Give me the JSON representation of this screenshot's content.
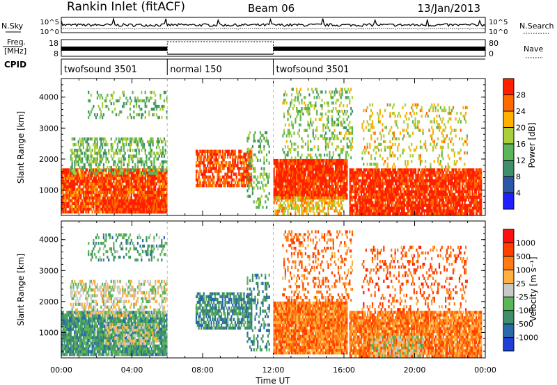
{
  "header": {
    "station": "Rankin Inlet (fitACF)",
    "beam": "Beam 06",
    "date": "13/Jan/2013"
  },
  "noise_panel": {
    "left_label": "N.Sky",
    "right_label": "N.Search",
    "left_ticks": [
      "10^5",
      "10^0"
    ],
    "right_ticks": [
      "10^5",
      "10^0"
    ]
  },
  "freq_panel": {
    "left_label_1": "Freq.",
    "left_label_2": "[MHz]",
    "right_label": "Nave",
    "left_ticks": [
      "18",
      "8"
    ],
    "right_ticks": [
      "80",
      "0"
    ]
  },
  "cpid": {
    "label": "CPID",
    "segments": [
      {
        "name": "twofsound 3501",
        "start_hour": 0,
        "end_hour": 6
      },
      {
        "name": "normal 150",
        "start_hour": 6,
        "end_hour": 12
      },
      {
        "name": "twofsound 3501",
        "start_hour": 12,
        "end_hour": 24
      }
    ]
  },
  "power_colorbar": {
    "title": "Power [dB]",
    "ticks": [
      "28",
      "24",
      "20",
      "16",
      "12",
      "8",
      "4"
    ]
  },
  "velocity_colorbar": {
    "title": "Velocity [m s⁻¹]",
    "ticks": [
      "1000",
      "500",
      "100",
      "25",
      "-25",
      "-100",
      "-500",
      "-1000"
    ]
  },
  "x_axis_label": "Time UT",
  "chart_data": [
    {
      "type": "heatmap",
      "name": "power",
      "ylabel": "Slant Range [km]",
      "xlabel": "",
      "xlim": [
        0,
        24
      ],
      "ylim": [
        180,
        4600
      ],
      "x_ticks": [
        "00:00",
        "04:00",
        "08:00",
        "12:00",
        "16:00",
        "20:00",
        "00:00"
      ],
      "y_ticks": [
        1000,
        2000,
        3000,
        4000
      ],
      "grid": false,
      "colorbar": "right",
      "color_levels": [
        "#1f1fff",
        "#2a57a8",
        "#3f8f6b",
        "#5cb558",
        "#a9cf3a",
        "#ffb000",
        "#ff6a00",
        "#ff2000"
      ],
      "blobs": [
        {
          "t0": 0.0,
          "t1": 6.0,
          "r0": 250,
          "r1": 1700,
          "level": 6.5,
          "d": 0.9
        },
        {
          "t0": 2.5,
          "t1": 5.8,
          "r0": 250,
          "r1": 700,
          "level": 6.8,
          "d": 0.9
        },
        {
          "t0": 0.5,
          "t1": 6.0,
          "r0": 1500,
          "r1": 2700,
          "level": 3.0,
          "d": 0.45
        },
        {
          "t0": 1.5,
          "t1": 6.0,
          "r0": 3300,
          "r1": 4200,
          "level": 3.0,
          "d": 0.25
        },
        {
          "t0": 7.6,
          "t1": 10.8,
          "r0": 1100,
          "r1": 2300,
          "level": 6.5,
          "d": 0.7
        },
        {
          "t0": 10.5,
          "t1": 11.8,
          "r0": 400,
          "r1": 2900,
          "level": 3.0,
          "d": 0.25
        },
        {
          "t0": 12.0,
          "t1": 16.2,
          "r0": 700,
          "r1": 2000,
          "level": 7.0,
          "d": 0.95
        },
        {
          "t0": 12.0,
          "t1": 16.0,
          "r0": 200,
          "r1": 800,
          "level": 5.0,
          "d": 0.6
        },
        {
          "t0": 12.5,
          "t1": 16.5,
          "r0": 2000,
          "r1": 4300,
          "level": 3.5,
          "d": 0.25
        },
        {
          "t0": 16.3,
          "t1": 23.8,
          "r0": 200,
          "r1": 1700,
          "level": 7.0,
          "d": 0.9
        },
        {
          "t0": 17.0,
          "t1": 23.0,
          "r0": 1700,
          "r1": 3800,
          "level": 4.5,
          "d": 0.2
        }
      ]
    },
    {
      "type": "heatmap",
      "name": "velocity",
      "ylabel": "Slant Range [km]",
      "xlabel": "Time UT",
      "xlim": [
        0,
        24
      ],
      "ylim": [
        180,
        4600
      ],
      "x_ticks": [
        "00:00",
        "04:00",
        "08:00",
        "12:00",
        "16:00",
        "20:00",
        "00:00"
      ],
      "y_ticks": [
        1000,
        2000,
        3000,
        4000
      ],
      "grid": false,
      "colorbar": "right",
      "color_levels": [
        "#1f40d8",
        "#2a6aa8",
        "#3f8f6b",
        "#5cb558",
        "#c8c8c8",
        "#ffb040",
        "#ff7a10",
        "#ff4000",
        "#ff1010"
      ],
      "blobs": [
        {
          "t0": 0.0,
          "t1": 6.0,
          "r0": 250,
          "r1": 1700,
          "level": 2.2,
          "d": 0.9
        },
        {
          "t0": 2.5,
          "t1": 5.5,
          "r0": 600,
          "r1": 1300,
          "level": 4.0,
          "d": 0.5
        },
        {
          "t0": 0.5,
          "t1": 6.0,
          "r0": 1500,
          "r1": 2700,
          "level": 4.0,
          "d": 0.45
        },
        {
          "t0": 1.5,
          "t1": 6.0,
          "r0": 3300,
          "r1": 4200,
          "level": 2.5,
          "d": 0.25
        },
        {
          "t0": 7.6,
          "t1": 10.8,
          "r0": 1100,
          "r1": 2300,
          "level": 1.8,
          "d": 0.7
        },
        {
          "t0": 10.5,
          "t1": 11.8,
          "r0": 400,
          "r1": 2900,
          "level": 2.0,
          "d": 0.25
        },
        {
          "t0": 12.0,
          "t1": 16.2,
          "r0": 300,
          "r1": 2000,
          "level": 6.0,
          "d": 0.95
        },
        {
          "t0": 12.5,
          "t1": 16.5,
          "r0": 2000,
          "r1": 4300,
          "level": 6.2,
          "d": 0.25
        },
        {
          "t0": 16.3,
          "t1": 23.8,
          "r0": 200,
          "r1": 1700,
          "level": 6.0,
          "d": 0.9
        },
        {
          "t0": 17.5,
          "t1": 20.5,
          "r0": 200,
          "r1": 900,
          "level": 4.0,
          "d": 0.5
        },
        {
          "t0": 17.0,
          "t1": 23.0,
          "r0": 1700,
          "r1": 3800,
          "level": 6.5,
          "d": 0.2
        }
      ]
    }
  ]
}
